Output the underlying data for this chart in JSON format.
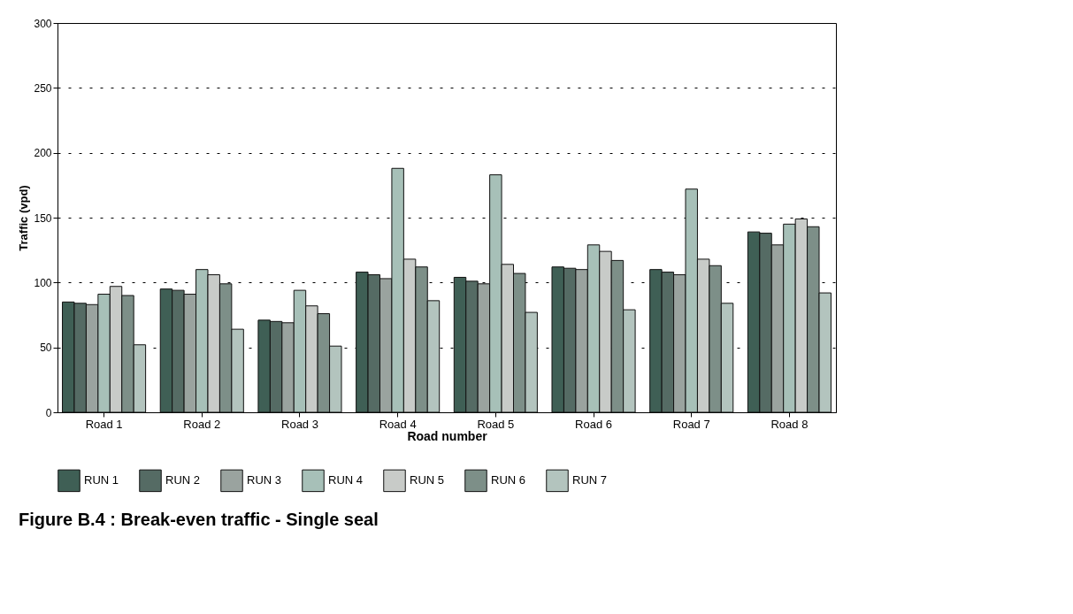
{
  "chart_data": {
    "type": "bar",
    "title": "Figure B.4 : Break-even traffic - Single seal",
    "xlabel": "Road number",
    "ylabel": "Traffic (vpd)",
    "categories": [
      "Road 1",
      "Road 2",
      "Road 3",
      "Road 4",
      "Road 5",
      "Road 6",
      "Road 7",
      "Road 8"
    ],
    "series": [
      {
        "name": "RUN 1",
        "color": "#3f5f55",
        "values": [
          85,
          95,
          71,
          108,
          104,
          112,
          110,
          139
        ]
      },
      {
        "name": "RUN 2",
        "color": "#556b64",
        "values": [
          84,
          94,
          70,
          106,
          101,
          111,
          108,
          138
        ]
      },
      {
        "name": "RUN 3",
        "color": "#9aa39f",
        "values": [
          83,
          91,
          69,
          103,
          99,
          110,
          106,
          129
        ]
      },
      {
        "name": "RUN 4",
        "color": "#a7c0b8",
        "values": [
          91,
          110,
          94,
          188,
          183,
          129,
          172,
          145
        ]
      },
      {
        "name": "RUN 5",
        "color": "#c8cbc8",
        "values": [
          97,
          106,
          82,
          118,
          114,
          124,
          118,
          149
        ]
      },
      {
        "name": "RUN 6",
        "color": "#7d8f88",
        "values": [
          90,
          99,
          76,
          112,
          107,
          117,
          113,
          143
        ]
      },
      {
        "name": "RUN 7",
        "color": "#b3c4be",
        "values": [
          52,
          64,
          51,
          86,
          77,
          79,
          84,
          92
        ]
      }
    ],
    "ylim": [
      0,
      300
    ],
    "yticks": [
      0,
      50,
      100,
      150,
      200,
      250,
      300
    ],
    "grid": "y",
    "legend": "bottom"
  }
}
